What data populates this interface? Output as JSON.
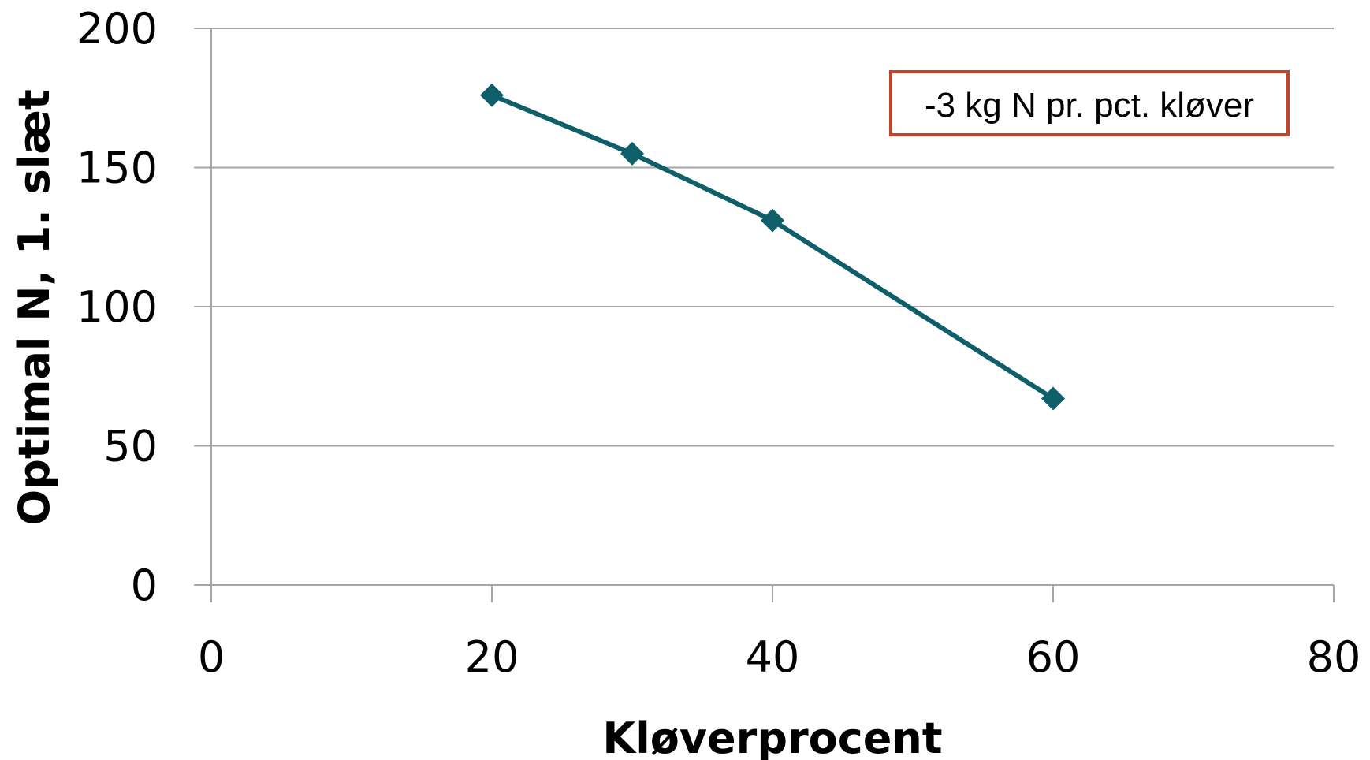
{
  "chart_data": {
    "type": "line",
    "title": "",
    "xlabel": "Kløverprocent",
    "ylabel": "Optimal N, 1. slæt",
    "xlim": [
      0,
      80
    ],
    "ylim": [
      0,
      200
    ],
    "x_ticks": [
      "0",
      "20",
      "40",
      "60",
      "80"
    ],
    "y_ticks": [
      "0",
      "50",
      "100",
      "150",
      "200"
    ],
    "grid": "horizontal",
    "legend": "none",
    "series": [
      {
        "marker": "diamond",
        "color": "#0f5f6b",
        "points": [
          {
            "x": 20,
            "y": 176
          },
          {
            "x": 30,
            "y": 155
          },
          {
            "x": 40,
            "y": 131
          },
          {
            "x": 60,
            "y": 67
          }
        ]
      }
    ],
    "annotation": {
      "text": "-3 kg N pr. pct. kløver",
      "border_color": "#c0462b"
    }
  }
}
